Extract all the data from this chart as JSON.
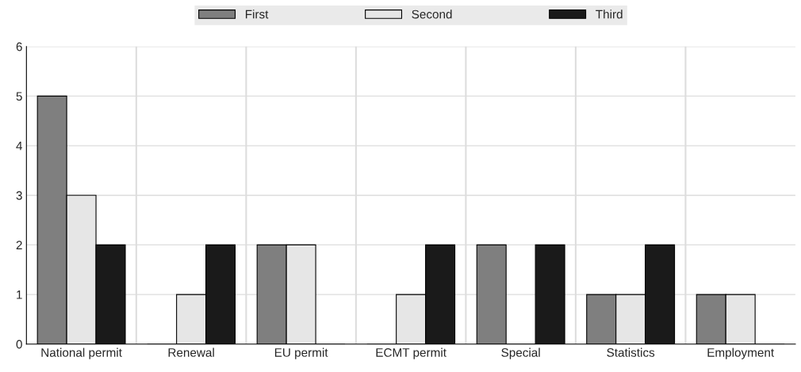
{
  "chart_data": {
    "type": "bar",
    "categories": [
      "National permit",
      "Renewal",
      "EU permit",
      "ECMT permit",
      "Special",
      "Statistics",
      "Employment"
    ],
    "series": [
      {
        "name": "First",
        "color": "#7f7f7f",
        "values": [
          5,
          0,
          2,
          0,
          2,
          1,
          1
        ]
      },
      {
        "name": "Second",
        "color": "#e6e6e6",
        "values": [
          3,
          1,
          2,
          1,
          0,
          1,
          1
        ]
      },
      {
        "name": "Third",
        "color": "#1a1a1a",
        "values": [
          2,
          2,
          0,
          2,
          2,
          2,
          0
        ]
      }
    ],
    "ylim": [
      0,
      6
    ],
    "yticks": [
      0,
      1,
      2,
      3,
      4,
      5,
      6
    ],
    "grid": true,
    "legend": "top"
  }
}
